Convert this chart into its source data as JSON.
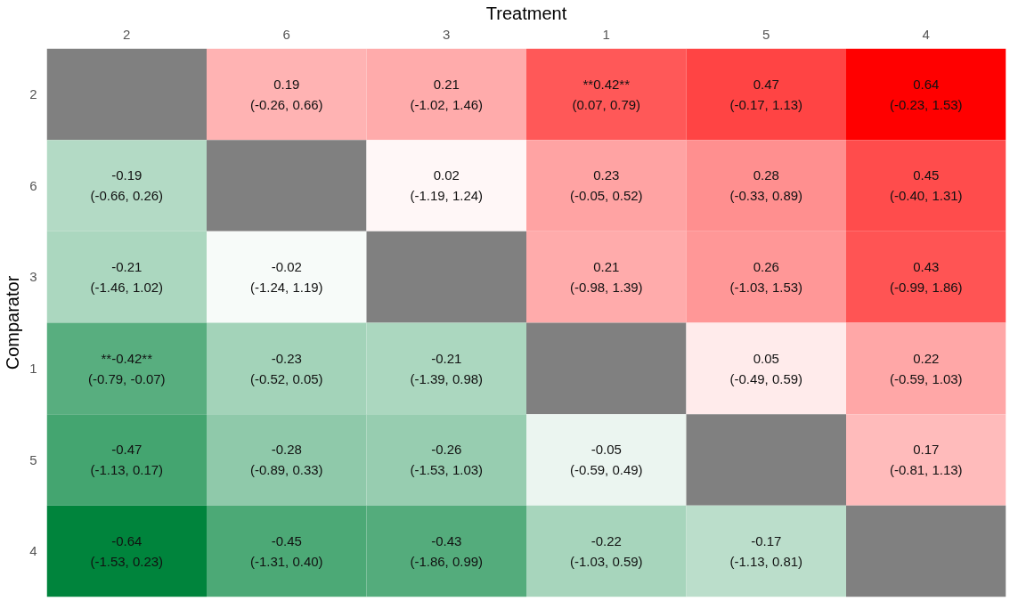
{
  "chart_data": {
    "type": "heatmap",
    "xlabel": "Treatment",
    "ylabel": "Comparator",
    "grid": false,
    "data_labels": true,
    "categories": [
      "2",
      "6",
      "3",
      "1",
      "5",
      "4"
    ],
    "y_categories": [
      "2",
      "6",
      "3",
      "1",
      "5",
      "4"
    ],
    "cells": [
      [
        null,
        0.19,
        0.21,
        0.42,
        0.47,
        0.64
      ],
      [
        -0.19,
        null,
        0.02,
        0.23,
        0.28,
        0.45
      ],
      [
        -0.21,
        -0.02,
        null,
        0.21,
        0.26,
        0.43
      ],
      [
        -0.42,
        -0.23,
        -0.21,
        null,
        0.05,
        0.22
      ],
      [
        -0.47,
        -0.28,
        -0.26,
        -0.05,
        null,
        0.17
      ],
      [
        -0.64,
        -0.45,
        -0.43,
        -0.22,
        -0.17,
        null
      ]
    ],
    "cell_labels": [
      [
        null,
        "0.19",
        "0.21",
        "**0.42**",
        "0.47",
        "0.64"
      ],
      [
        "-0.19",
        null,
        "0.02",
        "0.23",
        "0.28",
        "0.45"
      ],
      [
        "-0.21",
        "-0.02",
        null,
        "0.21",
        "0.26",
        "0.43"
      ],
      [
        "**-0.42**",
        "-0.23",
        "-0.21",
        null,
        "0.05",
        "0.22"
      ],
      [
        "-0.47",
        "-0.28",
        "-0.26",
        "-0.05",
        null,
        "0.17"
      ],
      [
        "-0.64",
        "-0.45",
        "-0.43",
        "-0.22",
        "-0.17",
        null
      ]
    ],
    "annotations": [
      "(-0.26, 0.66)",
      "(-1.02, 1.46)",
      "(0.07, 0.79)",
      "(-0.17, 1.13)",
      "(-0.23, 1.53)",
      "(-0.66, 0.26)",
      "(-1.19, 1.24)",
      "(-0.05, 0.52)",
      "(-0.33, 0.89)",
      "(-0.40, 1.31)",
      "(-1.46, 1.02)",
      "(-1.24, 1.19)",
      "(-0.98, 1.39)",
      "(-1.03, 1.53)",
      "(-0.99, 1.86)",
      "(-0.79, -0.07)",
      "(-0.52, 0.05)",
      "(-1.39, 0.98)",
      "(-0.49, 0.59)",
      "(-0.59, 1.03)",
      "(-1.13, 0.17)",
      "(-0.89, 0.33)",
      "(-1.53, 1.03)",
      "(-0.59, 0.49)",
      "(-0.81, 1.13)",
      "(-1.53, 0.23)",
      "(-1.31, 0.40)",
      "(-1.86, 0.99)",
      "(-1.03, 0.59)",
      "(-1.13, 0.81)"
    ]
  }
}
